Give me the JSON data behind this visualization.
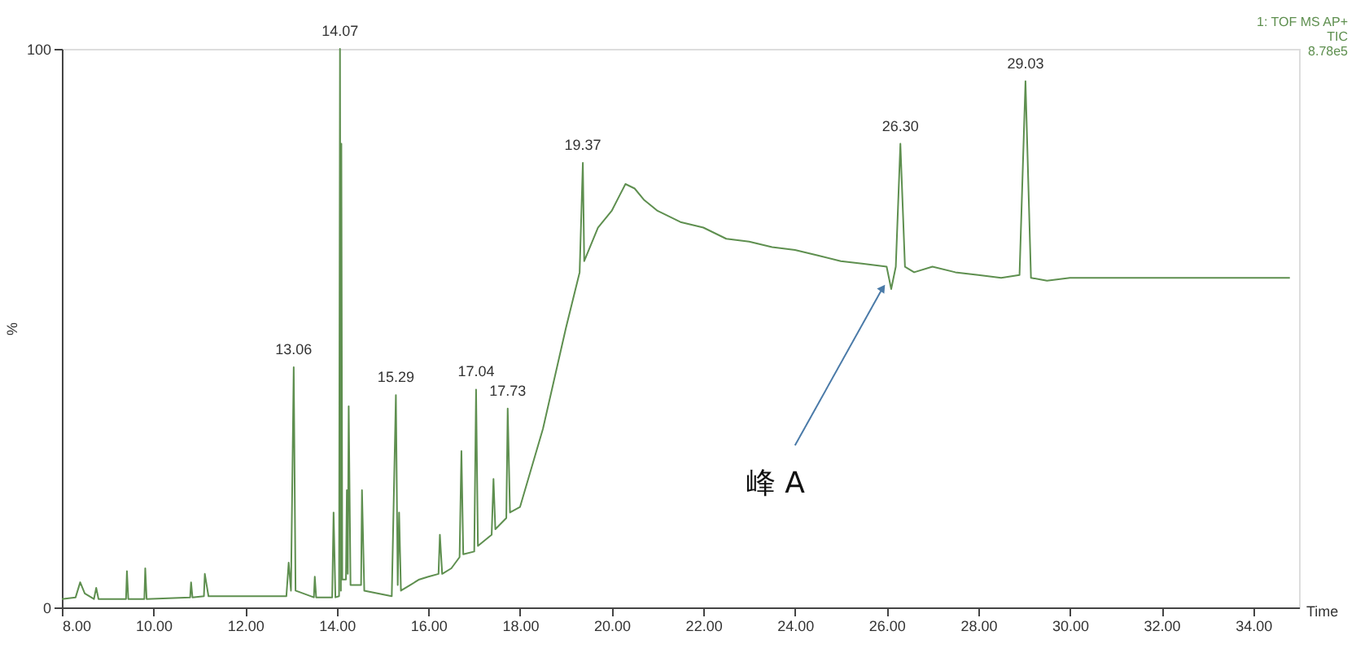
{
  "chart_data": {
    "type": "line",
    "xlabel": "Time",
    "ylabel": "%",
    "xlim": [
      8,
      35
    ],
    "xticks": [
      {
        "value": 8,
        "label": "8.00"
      },
      {
        "value": 10,
        "label": "10.00"
      },
      {
        "value": 12,
        "label": "12.00"
      },
      {
        "value": 14,
        "label": "14.00"
      },
      {
        "value": 16,
        "label": "16.00"
      },
      {
        "value": 18,
        "label": "18.00"
      },
      {
        "value": 20,
        "label": "20.00"
      },
      {
        "value": 22,
        "label": "22.00"
      },
      {
        "value": 24,
        "label": "24.00"
      },
      {
        "value": 26,
        "label": "26.00"
      },
      {
        "value": 28,
        "label": "28.00"
      },
      {
        "value": 30,
        "label": "30.00"
      },
      {
        "value": 32,
        "label": "32.00"
      },
      {
        "value": 34,
        "label": "34.00"
      }
    ],
    "ylim": [
      0,
      100
    ],
    "yticks": [
      0,
      100
    ],
    "grid": false,
    "legend": false,
    "marker": "none",
    "line_style": "solid",
    "series": [
      {
        "color": "#5e8f4f",
        "x": [
          8.0,
          8.3,
          8.4,
          8.5,
          8.7,
          8.75,
          8.8,
          9.4,
          9.42,
          9.45,
          9.8,
          9.82,
          9.85,
          10.8,
          10.82,
          10.85,
          11.1,
          11.12,
          11.2,
          12.9,
          12.95,
          13.0,
          13.06,
          13.1,
          13.5,
          13.52,
          13.55,
          13.9,
          13.93,
          13.97,
          14.05,
          14.07,
          14.09,
          14.1,
          14.12,
          14.2,
          14.22,
          14.24,
          14.26,
          14.3,
          14.53,
          14.55,
          14.6,
          15.2,
          15.29,
          15.33,
          15.36,
          15.4,
          15.6,
          15.8,
          16.0,
          16.22,
          16.25,
          16.3,
          16.5,
          16.68,
          16.72,
          16.76,
          17.0,
          17.04,
          17.08,
          17.38,
          17.42,
          17.46,
          17.7,
          17.73,
          17.78,
          18.0,
          18.5,
          19.0,
          19.3,
          19.37,
          19.4,
          19.7,
          20.0,
          20.3,
          20.5,
          20.7,
          21.0,
          21.5,
          22.0,
          22.5,
          23.0,
          23.5,
          24.0,
          24.5,
          25.0,
          25.5,
          26.0,
          26.1,
          26.2,
          26.3,
          26.4,
          26.6,
          27.0,
          27.5,
          28.0,
          28.5,
          28.9,
          29.03,
          29.15,
          29.5,
          30.0,
          31.0,
          32.0,
          33.0,
          34.0,
          34.8
        ],
        "values": [
          1.5,
          1.8,
          4.5,
          2.5,
          1.5,
          3.5,
          1.5,
          1.5,
          6.5,
          1.5,
          1.5,
          7,
          1.5,
          1.8,
          4.5,
          1.8,
          2,
          6,
          2,
          2,
          8,
          3,
          43,
          3,
          1.8,
          5.5,
          1.8,
          1.8,
          17,
          1.8,
          2,
          100,
          3,
          83,
          5,
          5,
          21,
          6,
          36,
          4,
          4,
          21,
          3,
          2,
          38,
          4,
          17,
          3,
          4,
          5,
          5.5,
          6,
          13,
          6,
          7,
          9,
          28,
          9.5,
          10,
          39,
          11,
          13,
          23,
          14,
          16,
          35.6,
          17,
          18,
          32,
          50,
          60,
          79.6,
          62,
          68,
          71,
          75.8,
          75,
          73,
          71,
          69,
          68,
          66,
          65.5,
          64.5,
          64,
          63,
          62,
          61.5,
          61,
          57,
          61,
          83,
          61,
          60,
          61,
          60,
          59.5,
          59,
          59.5,
          94.2,
          59,
          58.5,
          59,
          59,
          59,
          59,
          59,
          59
        ]
      }
    ],
    "annotations": [
      {
        "text": "13.06",
        "x": 13.06,
        "y": 43
      },
      {
        "text": "14.07",
        "x": 14.07,
        "y": 100
      },
      {
        "text": "15.29",
        "x": 15.29,
        "y": 38
      },
      {
        "text": "17.04",
        "x": 17.04,
        "y": 39
      },
      {
        "text": "17.73",
        "x": 17.73,
        "y": 35.6
      },
      {
        "text": "19.37",
        "x": 19.37,
        "y": 79.6
      },
      {
        "text": "26.30",
        "x": 26.3,
        "y": 83
      },
      {
        "text": "29.03",
        "x": 29.03,
        "y": 94.2
      },
      {
        "text": "峰 A",
        "x": 25.9,
        "y": 57
      },
      "1: TOF MS AP+",
      "TIC",
      "8.78e5"
    ]
  }
}
